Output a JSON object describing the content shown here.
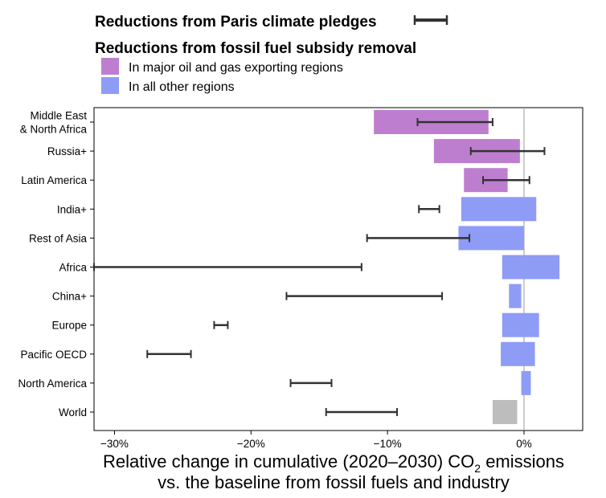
{
  "chart_data": {
    "type": "bar",
    "orientation": "horizontal",
    "legend": {
      "pledge_title": "Reductions from Paris climate pledges",
      "subsidy_title": "Reductions from fossil fuel subsidy removal",
      "items": [
        {
          "name": "In major oil and gas exporting regions",
          "color": "#be7ed0"
        },
        {
          "name": "In all other regions",
          "color": "#8e9cf5"
        }
      ],
      "placement": "top"
    },
    "categories": [
      "Middle East\n& North Africa",
      "Russia+",
      "Latin America",
      "India+",
      "Rest of Asia",
      "Africa",
      "China+",
      "Europe",
      "Pacific OECD",
      "North America",
      "World"
    ],
    "bars": [
      {
        "from": -11.0,
        "to": -2.6,
        "group": "exporting"
      },
      {
        "from": -6.6,
        "to": -0.3,
        "group": "exporting"
      },
      {
        "from": -4.4,
        "to": -1.2,
        "group": "exporting"
      },
      {
        "from": -4.6,
        "to": 0.9,
        "group": "other"
      },
      {
        "from": -4.8,
        "to": 0.0,
        "group": "other"
      },
      {
        "from": -1.6,
        "to": 2.6,
        "group": "other"
      },
      {
        "from": -1.1,
        "to": -0.2,
        "group": "other"
      },
      {
        "from": -1.6,
        "to": 1.1,
        "group": "other"
      },
      {
        "from": -1.7,
        "to": 0.8,
        "group": "other"
      },
      {
        "from": -0.2,
        "to": 0.5,
        "group": "other"
      },
      {
        "from": -2.3,
        "to": -0.5,
        "group": "world"
      }
    ],
    "pledge_ranges": [
      [
        -7.8,
        -2.3
      ],
      [
        -3.9,
        1.5
      ],
      [
        -3.0,
        0.4
      ],
      [
        -7.7,
        -6.2
      ],
      [
        -11.5,
        -4.0
      ],
      [
        -31.5,
        -11.9
      ],
      [
        -17.4,
        -6.0
      ],
      [
        -22.7,
        -21.7
      ],
      [
        -27.6,
        -24.4
      ],
      [
        -17.1,
        -14.1
      ],
      [
        -14.5,
        -9.3
      ]
    ],
    "xlim": [
      -31.5,
      4.3
    ],
    "xticks": [
      -30,
      -20,
      -10,
      0
    ],
    "xtick_labels": [
      "−30%",
      "−20%",
      "−10%",
      "0%"
    ],
    "xlabel_line1_pre": "Relative change in cumulative (2020–2030) CO",
    "xlabel_sub": "2",
    "xlabel_line1_post": " emissions",
    "xlabel_line2": "vs. the baseline from fossil fuels and industry",
    "grid": false,
    "colors": {
      "exporting": "#be7ed0",
      "other": "#8e9cf5",
      "world": "#bdbdbd",
      "pledge": "#333333",
      "zero_line": "#9a9a9a"
    }
  }
}
